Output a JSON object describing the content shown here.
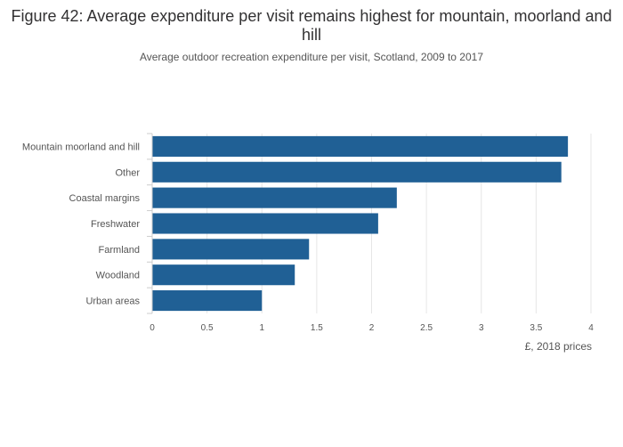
{
  "title": "Figure 42: Average expenditure per visit remains highest for mountain, moorland and hill",
  "subtitle": "Average outdoor recreation expenditure per visit, Scotland, 2009 to 2017",
  "chart_data": {
    "type": "bar",
    "orientation": "horizontal",
    "title": "Figure 42: Average expenditure per visit remains highest for mountain, moorland and hill",
    "subtitle": "Average outdoor recreation expenditure per visit, Scotland, 2009 to 2017",
    "categories": [
      "Mountain moorland and hill",
      "Other",
      "Coastal margins",
      "Freshwater",
      "Farmland",
      "Woodland",
      "Urban areas"
    ],
    "values": [
      3.79,
      3.73,
      2.23,
      2.06,
      1.43,
      1.3,
      1.0
    ],
    "xlabel": "£, 2018 prices",
    "ylabel": "",
    "xlim": [
      0,
      4
    ],
    "xticks": [
      0,
      0.5,
      1,
      1.5,
      2,
      2.5,
      3,
      3.5,
      4
    ],
    "xtick_labels": [
      "0",
      "0.5",
      "1",
      "1.5",
      "2",
      "2.5",
      "3",
      "3.5",
      "4"
    ],
    "grid": true,
    "bar_color": "#206095",
    "grid_color": "#e6e6e6"
  }
}
